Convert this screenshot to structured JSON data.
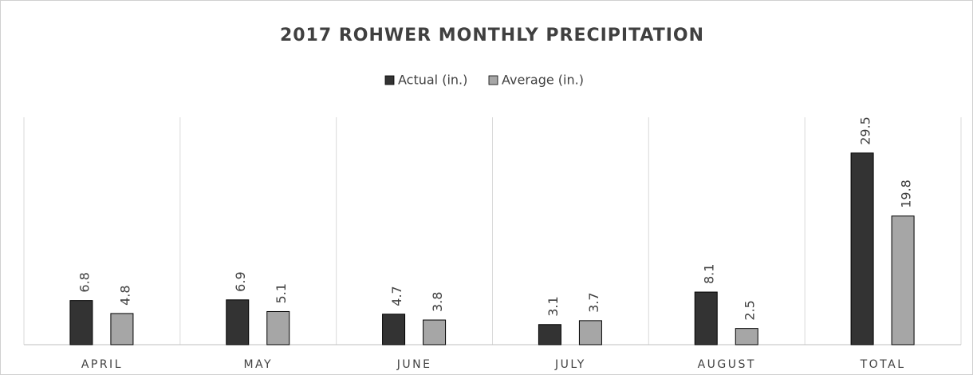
{
  "chart_data": {
    "type": "bar",
    "title": "2017 ROHWER MONTHLY PRECIPITATION",
    "categories": [
      "APRIL",
      "MAY",
      "JUNE",
      "JULY",
      "AUGUST",
      "TOTAL"
    ],
    "series": [
      {
        "name": "Actual (in.)",
        "color": "#333333",
        "values": [
          6.8,
          6.9,
          4.7,
          3.1,
          8.1,
          29.5
        ]
      },
      {
        "name": "Average (in.)",
        "color": "#a6a6a6",
        "values": [
          4.8,
          5.1,
          3.8,
          3.7,
          2.5,
          19.8
        ]
      }
    ],
    "ylim": [
      0,
      35
    ],
    "legend": "top"
  }
}
